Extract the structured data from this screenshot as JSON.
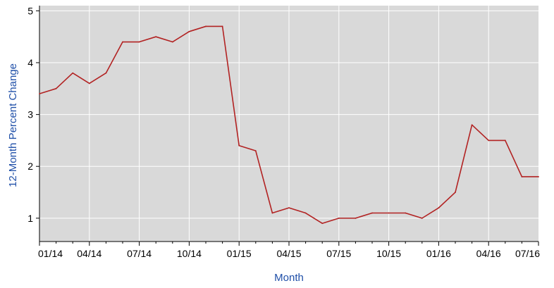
{
  "chart_data": {
    "type": "line",
    "title": "",
    "xlabel": "Month",
    "ylabel": "12-Month Percent Change",
    "ylim": [
      0.55,
      5.1
    ],
    "y_ticks": [
      1,
      2,
      3,
      4,
      5
    ],
    "grid": true,
    "legend": "none",
    "x_tick_labels": [
      "01/14",
      "04/14",
      "07/14",
      "10/14",
      "01/15",
      "04/15",
      "07/15",
      "10/15",
      "01/16",
      "04/16",
      "07/16"
    ],
    "x": [
      "01/14",
      "02/14",
      "03/14",
      "04/14",
      "05/14",
      "06/14",
      "07/14",
      "08/14",
      "09/14",
      "10/14",
      "11/14",
      "12/14",
      "01/15",
      "02/15",
      "03/15",
      "04/15",
      "05/15",
      "06/15",
      "07/15",
      "08/15",
      "09/15",
      "10/15",
      "11/15",
      "12/15",
      "01/16",
      "02/16",
      "03/16",
      "04/16",
      "05/16",
      "06/16",
      "07/16"
    ],
    "series": [
      {
        "values": [
          3.4,
          3.5,
          3.8,
          3.6,
          3.8,
          4.4,
          4.4,
          4.5,
          4.4,
          4.6,
          4.7,
          4.7,
          2.4,
          2.3,
          1.1,
          1.2,
          1.1,
          0.9,
          1.0,
          1.0,
          1.1,
          1.1,
          1.1,
          1.0,
          1.2,
          1.5,
          2.8,
          2.5,
          2.5,
          1.8,
          1.8
        ],
        "color": "#b22222"
      }
    ],
    "colors": {
      "plot_background": "#d9d9d9",
      "grid": "#ffffff",
      "axis_title": "#1f4fa8",
      "line": "#b22222"
    }
  }
}
